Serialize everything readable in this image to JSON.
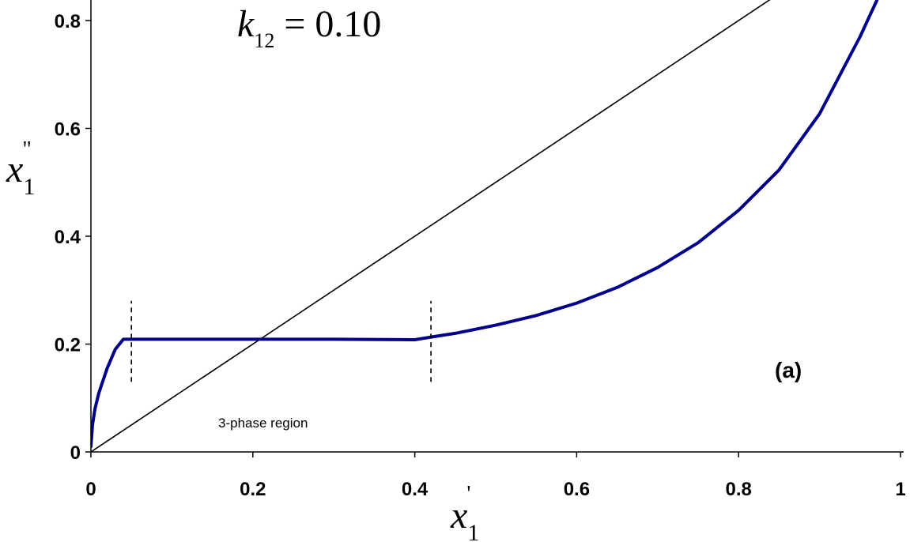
{
  "chart_data": {
    "type": "line",
    "title": "",
    "xlabel": {
      "symbol": "x",
      "sub": "1",
      "sup": "'"
    },
    "ylabel": {
      "symbol": "x",
      "sub": "1",
      "sup": "\""
    },
    "xlim": [
      0,
      1
    ],
    "ylim": [
      0,
      0.8
    ],
    "grid": false,
    "x_ticks": [
      {
        "value": 0,
        "label": "0"
      },
      {
        "value": 0.2,
        "label": "0.2"
      },
      {
        "value": 0.4,
        "label": "0.4"
      },
      {
        "value": 0.6,
        "label": "0.6"
      },
      {
        "value": 0.8,
        "label": "0.8"
      },
      {
        "value": 1,
        "label": "1"
      }
    ],
    "y_ticks": [
      {
        "value": 0,
        "label": "0"
      },
      {
        "value": 0.2,
        "label": "0.2"
      },
      {
        "value": 0.4,
        "label": "0.4"
      },
      {
        "value": 0.6,
        "label": "0.6"
      },
      {
        "value": 0.8,
        "label": "0.8"
      }
    ],
    "series": [
      {
        "color": "#00008b",
        "x": [
          0,
          0.002,
          0.005,
          0.01,
          0.02,
          0.03,
          0.04,
          0.1,
          0.2,
          0.3,
          0.4,
          0.42,
          0.45,
          0.5,
          0.55,
          0.6,
          0.65,
          0.7,
          0.75,
          0.8,
          0.85,
          0.9,
          0.95,
          0.99
        ],
        "y": [
          0.01,
          0.05,
          0.08,
          0.11,
          0.155,
          0.19,
          0.209,
          0.209,
          0.209,
          0.209,
          0.208,
          0.213,
          0.22,
          0.235,
          0.253,
          0.276,
          0.305,
          0.342,
          0.388,
          0.448,
          0.523,
          0.627,
          0.77,
          0.9
        ]
      },
      {
        "color": "#000000",
        "x": [
          0,
          1
        ],
        "y": [
          0,
          1
        ]
      }
    ],
    "markers": [
      {
        "x": 0.05,
        "y_from": 0.13,
        "y_to": 0.28
      },
      {
        "x": 0.42,
        "y_from": 0.13,
        "y_to": 0.28
      }
    ],
    "annotations": {
      "param_symbol": "k",
      "param_sub": "12",
      "param_value": "= 0.10",
      "region": "3-phase region",
      "panel": "(a)"
    }
  }
}
